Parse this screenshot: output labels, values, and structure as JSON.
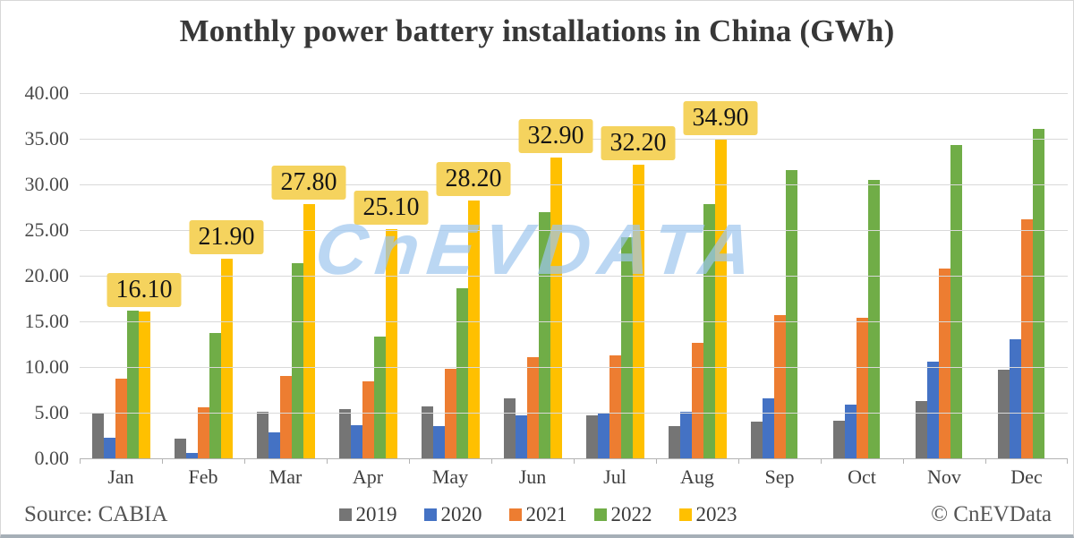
{
  "title": "Monthly power battery installations in China (GWh)",
  "watermark": "CnEVDATA",
  "footer": {
    "source": "Source: CABIA",
    "copyright": "© CnEVData"
  },
  "colors": {
    "grid": "#d9d9d9",
    "axis": "#b3b3b3",
    "data_label_bg": "#f5d35e",
    "watermark_blue": "#9ec6ee"
  },
  "chart_data": {
    "type": "bar",
    "title": "Monthly power battery installations in China (GWh)",
    "categories": [
      "Jan",
      "Feb",
      "Mar",
      "Apr",
      "May",
      "Jun",
      "Jul",
      "Aug",
      "Sep",
      "Oct",
      "Nov",
      "Dec"
    ],
    "series": [
      {
        "name": "2019",
        "color": "#757575",
        "values": [
          5.0,
          2.2,
          5.1,
          5.4,
          5.7,
          6.6,
          4.7,
          3.5,
          4.0,
          4.1,
          6.3,
          9.7
        ]
      },
      {
        "name": "2020",
        "color": "#4472c4",
        "values": [
          2.3,
          0.6,
          2.8,
          3.6,
          3.5,
          4.7,
          5.0,
          5.1,
          6.6,
          5.9,
          10.6,
          13.0
        ]
      },
      {
        "name": "2021",
        "color": "#ed7d31",
        "values": [
          8.7,
          5.6,
          9.0,
          8.4,
          9.8,
          11.1,
          11.3,
          12.6,
          15.7,
          15.4,
          20.8,
          26.2
        ]
      },
      {
        "name": "2022",
        "color": "#70ad47",
        "values": [
          16.2,
          13.7,
          21.4,
          13.3,
          18.6,
          27.0,
          24.2,
          27.8,
          31.6,
          30.5,
          34.3,
          36.1
        ]
      },
      {
        "name": "2023",
        "color": "#ffc000",
        "values": [
          16.1,
          21.9,
          27.8,
          25.1,
          28.2,
          32.9,
          32.2,
          34.9,
          null,
          null,
          null,
          null
        ],
        "data_labels": [
          "16.10",
          "21.90",
          "27.80",
          "25.10",
          "28.20",
          "32.90",
          "32.20",
          "34.90",
          null,
          null,
          null,
          null
        ]
      }
    ],
    "ylim": [
      0,
      40
    ],
    "ytick_labels_top_to_bottom": [
      "40.00",
      "35.00",
      "30.00",
      "25.00",
      "20.00",
      "15.00",
      "10.00",
      "5.00",
      "0.00"
    ],
    "xlabel": "",
    "ylabel": "",
    "grid": true,
    "legend_position": "bottom"
  }
}
